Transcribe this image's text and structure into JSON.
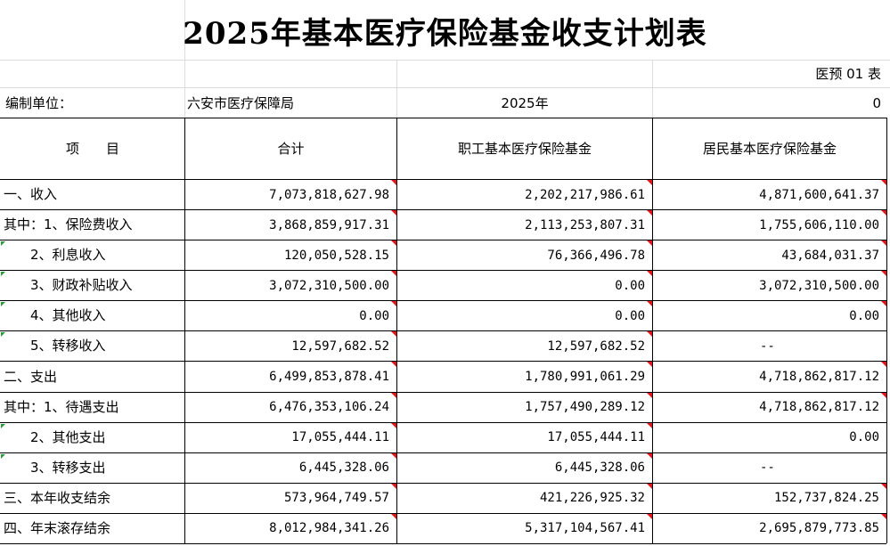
{
  "title": "2025年基本医疗保险基金收支计划表",
  "form_code": "医预 01 表",
  "unit_label": "编制单位：",
  "unit_name": "六安市医疗保障局",
  "year": "2025年",
  "unit_suffix": "0",
  "headers": [
    "项　　目",
    "合计",
    "职工基本医疗保险基金",
    "居民基本医疗保险基金"
  ],
  "rows": [
    {
      "label": "一、收入",
      "total": "7,073,818,627.98",
      "employee": "2,202,217,986.61",
      "resident": "4,871,600,641.37"
    },
    {
      "label": "其中：1、保险费收入",
      "total": "3,868,859,917.31",
      "employee": "2,113,253,807.31",
      "resident": "1,755,606,110.00"
    },
    {
      "label": "　　2、利息收入",
      "total": "120,050,528.15",
      "employee": "76,366,496.78",
      "resident": "43,684,031.37"
    },
    {
      "label": "　　3、财政补贴收入",
      "total": "3,072,310,500.00",
      "employee": "0.00",
      "resident": "3,072,310,500.00"
    },
    {
      "label": "　　4、其他收入",
      "total": "0.00",
      "employee": "0.00",
      "resident": "0.00"
    },
    {
      "label": "　　5、转移收入",
      "total": "12,597,682.52",
      "employee": "12,597,682.52",
      "resident": "--"
    },
    {
      "label": "二、支出",
      "total": "6,499,853,878.41",
      "employee": "1,780,991,061.29",
      "resident": "4,718,862,817.12"
    },
    {
      "label": "其中：1、待遇支出",
      "total": "6,476,353,106.24",
      "employee": "1,757,490,289.12",
      "resident": "4,718,862,817.12"
    },
    {
      "label": "　　2、其他支出",
      "total": "17,055,444.11",
      "employee": "17,055,444.11",
      "resident": "0.00"
    },
    {
      "label": "　　3、转移支出",
      "total": "6,445,328.06",
      "employee": "6,445,328.06",
      "resident": "--"
    },
    {
      "label": "三、本年收支结余",
      "total": "573,964,749.57",
      "employee": "421,226,925.32",
      "resident": "152,737,824.25"
    },
    {
      "label": "四、年末滚存结余",
      "total": "8,012,984,341.26",
      "employee": "5,317,104,567.41",
      "resident": "2,695,879,773.85"
    }
  ]
}
